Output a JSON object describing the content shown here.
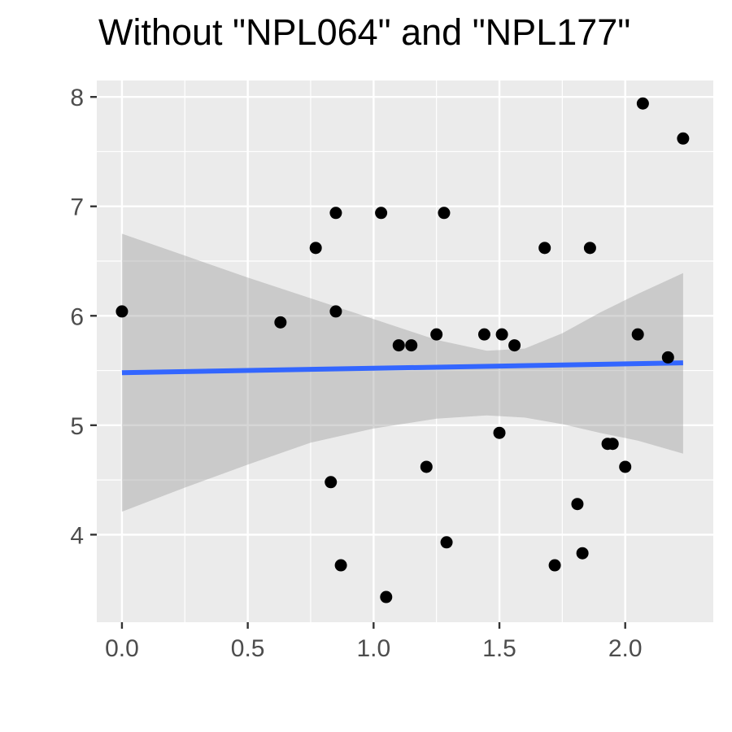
{
  "chart_data": {
    "type": "scatter",
    "title": "Without \"NPL064\" and \"NPL177\"",
    "xlabel": "",
    "ylabel": "",
    "xlim": [
      -0.1,
      2.35
    ],
    "ylim": [
      3.2,
      8.15
    ],
    "x_ticks": [
      0.0,
      0.5,
      1.0,
      1.5,
      2.0
    ],
    "x_tick_labels": [
      "0.0",
      "0.5",
      "1.0",
      "1.5",
      "2.0"
    ],
    "y_ticks": [
      4,
      5,
      6,
      7,
      8
    ],
    "y_tick_labels": [
      "4",
      "5",
      "6",
      "7",
      "8"
    ],
    "grid": true,
    "points": [
      {
        "x": 0.0,
        "y": 6.04
      },
      {
        "x": 0.63,
        "y": 5.94
      },
      {
        "x": 0.77,
        "y": 6.62
      },
      {
        "x": 0.83,
        "y": 4.48
      },
      {
        "x": 0.85,
        "y": 6.94
      },
      {
        "x": 0.85,
        "y": 6.04
      },
      {
        "x": 0.87,
        "y": 3.72
      },
      {
        "x": 1.03,
        "y": 6.94
      },
      {
        "x": 1.05,
        "y": 3.43
      },
      {
        "x": 1.1,
        "y": 5.73
      },
      {
        "x": 1.15,
        "y": 5.73
      },
      {
        "x": 1.21,
        "y": 4.62
      },
      {
        "x": 1.25,
        "y": 5.83
      },
      {
        "x": 1.28,
        "y": 6.94
      },
      {
        "x": 1.29,
        "y": 3.93
      },
      {
        "x": 1.44,
        "y": 5.83
      },
      {
        "x": 1.5,
        "y": 4.93
      },
      {
        "x": 1.51,
        "y": 5.83
      },
      {
        "x": 1.56,
        "y": 5.73
      },
      {
        "x": 1.68,
        "y": 6.62
      },
      {
        "x": 1.72,
        "y": 3.72
      },
      {
        "x": 1.81,
        "y": 4.28
      },
      {
        "x": 1.83,
        "y": 3.83
      },
      {
        "x": 1.86,
        "y": 6.62
      },
      {
        "x": 1.93,
        "y": 4.83
      },
      {
        "x": 1.95,
        "y": 4.83
      },
      {
        "x": 2.0,
        "y": 4.62
      },
      {
        "x": 2.05,
        "y": 5.83
      },
      {
        "x": 2.07,
        "y": 7.94
      },
      {
        "x": 2.17,
        "y": 5.62
      },
      {
        "x": 2.23,
        "y": 7.62
      }
    ],
    "fit_line": {
      "x": [
        0.0,
        2.23
      ],
      "y": [
        5.48,
        5.57
      ]
    },
    "confidence_band": {
      "x": [
        0.0,
        0.25,
        0.5,
        0.75,
        1.0,
        1.25,
        1.45,
        1.6,
        1.75,
        1.9,
        2.05,
        2.23
      ],
      "upper": [
        6.75,
        6.55,
        6.35,
        6.16,
        5.97,
        5.78,
        5.68,
        5.7,
        5.84,
        6.03,
        6.2,
        6.39
      ],
      "lower": [
        4.21,
        4.43,
        4.64,
        4.84,
        4.97,
        5.06,
        5.09,
        5.07,
        5.01,
        4.93,
        4.86,
        4.74
      ]
    },
    "colors": {
      "panel": "#ebebeb",
      "grid": "#ffffff",
      "points": "#000000",
      "fit_line": "#3366ff",
      "band": "#999999"
    }
  }
}
